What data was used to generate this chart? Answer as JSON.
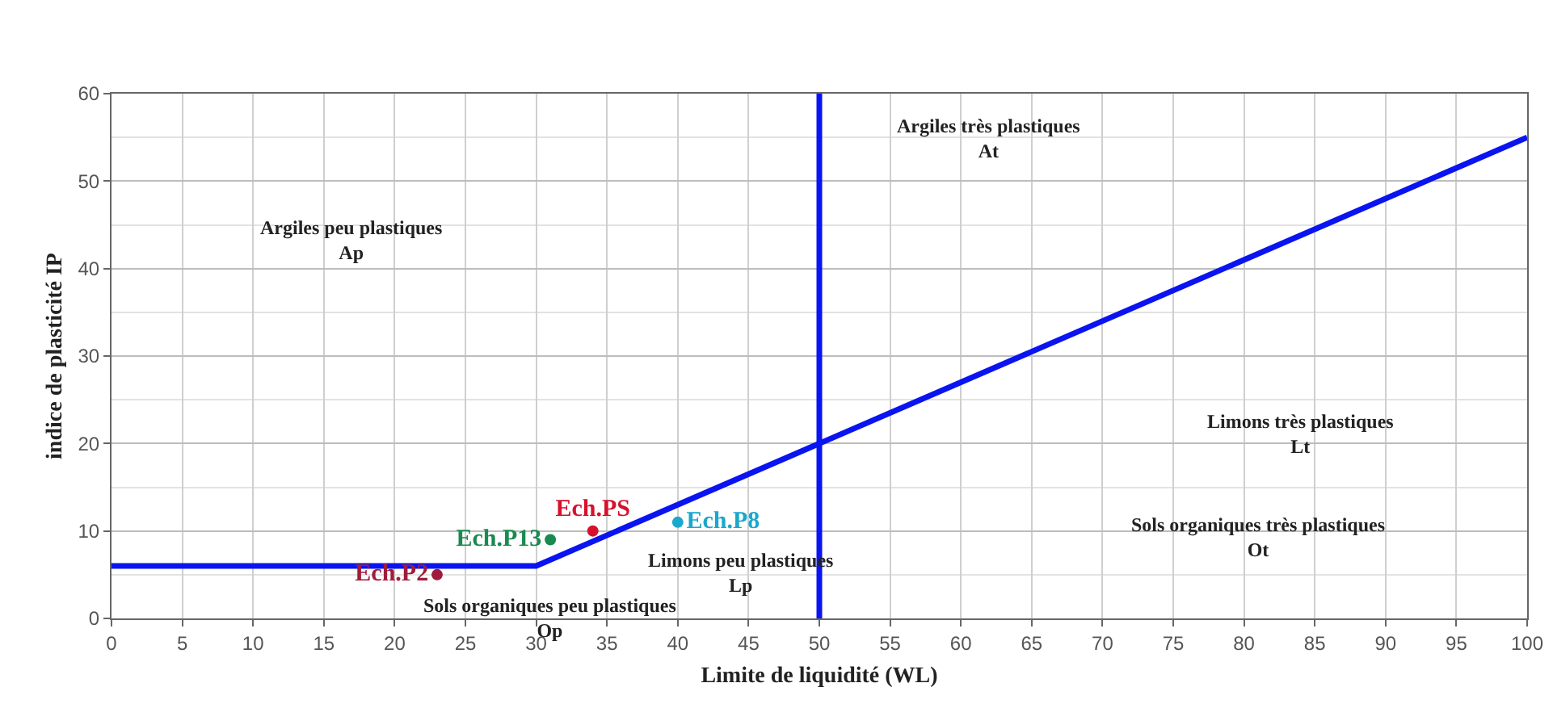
{
  "chart_data": {
    "type": "line",
    "xlabel": "Limite de liquidité (WL)",
    "ylabel": "indice de plasticité IP",
    "xlim": [
      0,
      100
    ],
    "xticks": [
      0,
      5,
      10,
      15,
      20,
      25,
      30,
      35,
      40,
      45,
      50,
      55,
      60,
      65,
      70,
      75,
      80,
      85,
      90,
      95,
      100
    ],
    "ylim": [
      0,
      60
    ],
    "yticks": [
      0,
      10,
      20,
      30,
      40,
      50,
      60
    ],
    "grid": true,
    "series": [
      {
        "color": "#0a14f0",
        "x": [
          0,
          30,
          100
        ],
        "values": [
          6,
          6,
          55
        ],
        "marker": "none",
        "line_style": "solid"
      },
      {
        "type": "scatter",
        "name": "Ech.P2",
        "color": "#a01c3c",
        "x": [
          23
        ],
        "values": [
          5
        ],
        "marker": "circle"
      },
      {
        "type": "scatter",
        "name": "Ech.P13",
        "color": "#1a8a50",
        "x": [
          31
        ],
        "values": [
          9
        ],
        "marker": "circle"
      },
      {
        "type": "scatter",
        "name": "Ech.PS",
        "color": "#d8102c",
        "x": [
          34
        ],
        "values": [
          10
        ],
        "marker": "circle"
      },
      {
        "type": "scatter",
        "name": "Ech.P8",
        "color": "#1aa8cc",
        "x": [
          40
        ],
        "values": [
          11
        ],
        "marker": "circle"
      }
    ],
    "ref_lines": [
      {
        "axis": "x",
        "value": 50,
        "color": "#0a14f0",
        "line_style": "solid"
      }
    ],
    "annotations": [
      "Argiles peu plastiques\nAp",
      "Argiles très plastiques\nAt",
      "Limons très plastiques\nLt",
      "Sols organiques très plastiques\nOt",
      "Limons peu plastiques\nLp",
      "Sols organiques peu plastiques\nOp"
    ]
  }
}
